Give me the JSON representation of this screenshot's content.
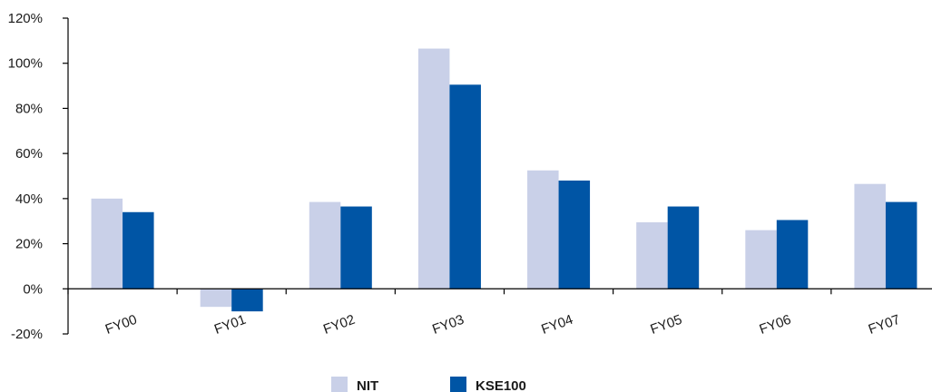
{
  "chart_data": {
    "type": "bar",
    "title": "",
    "xlabel": "",
    "ylabel": "",
    "categories": [
      "FY00",
      "FY01",
      "FY02",
      "FY03",
      "FY04",
      "FY05",
      "FY06",
      "FY07"
    ],
    "series": [
      {
        "name": "NIT",
        "values": [
          40,
          -8,
          38.5,
          106.5,
          52.5,
          29.5,
          26,
          46.5
        ],
        "color": "#c9d0e8"
      },
      {
        "name": "KSE100",
        "values": [
          34,
          -10,
          36.5,
          90.5,
          48,
          36.5,
          30.5,
          38.5
        ],
        "color": "#0055a5"
      }
    ],
    "ylim": [
      -20,
      120
    ],
    "yticks": [
      "120%",
      "100%",
      "80%",
      "60%",
      "40%",
      "20%",
      "0%",
      "-20%"
    ],
    "grid": false,
    "legend_position": "bottom"
  }
}
